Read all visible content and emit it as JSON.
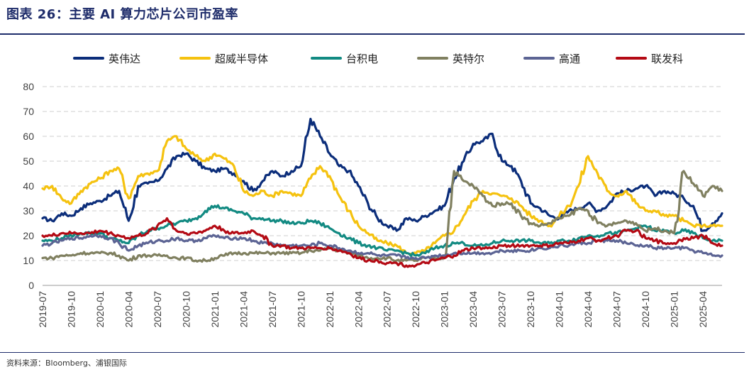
{
  "header": {
    "title": "图表 26：主要 AI 算力芯片公司市盈率"
  },
  "footer": {
    "source": "资料来源：Bloomberg、浦银国际"
  },
  "chart_data": {
    "type": "line",
    "title": "",
    "xlabel": "",
    "ylabel": "",
    "ylim": [
      0,
      80
    ],
    "yticks": [
      0,
      10,
      20,
      30,
      40,
      50,
      60,
      70,
      80
    ],
    "grid": "horizontal-dashed",
    "legend_position": "top",
    "x_tick_labels": [
      "2019-07",
      "2019-10",
      "2020-01",
      "2020-04",
      "2020-07",
      "2020-10",
      "2021-01",
      "2021-04",
      "2021-07",
      "2021-10",
      "2022-01",
      "2022-04",
      "2022-07",
      "2022-10",
      "2023-01",
      "2023-04",
      "2023-07",
      "2023-10",
      "2024-01",
      "2024-04",
      "2024-07",
      "2024-10",
      "2025-01",
      "2025-04"
    ],
    "x": [
      "2019-07",
      "2019-08",
      "2019-09",
      "2019-10",
      "2019-11",
      "2019-12",
      "2020-01",
      "2020-02",
      "2020-03",
      "2020-04",
      "2020-05",
      "2020-06",
      "2020-07",
      "2020-08",
      "2020-09",
      "2020-10",
      "2020-11",
      "2020-12",
      "2021-01",
      "2021-02",
      "2021-03",
      "2021-04",
      "2021-05",
      "2021-06",
      "2021-07",
      "2021-08",
      "2021-09",
      "2021-10",
      "2021-11",
      "2021-12",
      "2022-01",
      "2022-02",
      "2022-03",
      "2022-04",
      "2022-05",
      "2022-06",
      "2022-07",
      "2022-08",
      "2022-09",
      "2022-10",
      "2022-11",
      "2022-12",
      "2023-01",
      "2023-02",
      "2023-03",
      "2023-04",
      "2023-05",
      "2023-06",
      "2023-07",
      "2023-08",
      "2023-09",
      "2023-10",
      "2023-11",
      "2023-12",
      "2024-01",
      "2024-02",
      "2024-03",
      "2024-04",
      "2024-05",
      "2024-06",
      "2024-07",
      "2024-08",
      "2024-09",
      "2024-10",
      "2024-11",
      "2024-12",
      "2025-01",
      "2025-02",
      "2025-03",
      "2025-04",
      "2025-05",
      "2025-06"
    ],
    "series": [
      {
        "name": "英伟达",
        "color": "#0b2d7a",
        "values": [
          27,
          26,
          29,
          28,
          31,
          33,
          34,
          36,
          38,
          26,
          40,
          41,
          42,
          47,
          52,
          53,
          50,
          47,
          46,
          47,
          45,
          42,
          38,
          42,
          46,
          44,
          46,
          48,
          67,
          60,
          53,
          48,
          46,
          40,
          33,
          27,
          24,
          22,
          27,
          26,
          28,
          30,
          32,
          43,
          50,
          57,
          58,
          61,
          50,
          48,
          42,
          33,
          31,
          28,
          27,
          30,
          31,
          33,
          30,
          32,
          37,
          38,
          39,
          40,
          36,
          38,
          37,
          35,
          32,
          22,
          25,
          29
        ]
      },
      {
        "name": "超威半导体",
        "color": "#f5c20f",
        "values": [
          39,
          40,
          35,
          33,
          38,
          41,
          43,
          46,
          47,
          35,
          44,
          45,
          46,
          58,
          60,
          55,
          52,
          50,
          53,
          51,
          48,
          38,
          36,
          38,
          36,
          38,
          37,
          36,
          43,
          48,
          44,
          36,
          30,
          24,
          21,
          18,
          17,
          16,
          13,
          13,
          14,
          17,
          20,
          22,
          28,
          34,
          38,
          37,
          36,
          35,
          32,
          28,
          26,
          24,
          28,
          32,
          40,
          52,
          45,
          38,
          36,
          38,
          33,
          30,
          30,
          28,
          28,
          26,
          24,
          24,
          24,
          24
        ]
      },
      {
        "name": "台积电",
        "color": "#128a82",
        "values": [
          18,
          18,
          19,
          20,
          21,
          21,
          21,
          19,
          18,
          17,
          20,
          22,
          23,
          24,
          25,
          26,
          27,
          30,
          32,
          31,
          30,
          29,
          27,
          27,
          26,
          26,
          25,
          25,
          26,
          25,
          23,
          21,
          19,
          17,
          16,
          15,
          14,
          14,
          13,
          12,
          13,
          15,
          16,
          17,
          17,
          16,
          16,
          17,
          18,
          18,
          18,
          18,
          17,
          17,
          18,
          18,
          19,
          20,
          20,
          21,
          21,
          22,
          23,
          24,
          22,
          22,
          21,
          22,
          21,
          19,
          18,
          18
        ]
      },
      {
        "name": "英特尔",
        "color": "#808060",
        "values": [
          11,
          11,
          12,
          12,
          13,
          13,
          13,
          13,
          12,
          10,
          12,
          12,
          12,
          12,
          11,
          11,
          10,
          10,
          11,
          12,
          13,
          13,
          13,
          13,
          13,
          13,
          13,
          13,
          14,
          14,
          15,
          14,
          13,
          12,
          11,
          11,
          11,
          10,
          10,
          10,
          11,
          11,
          11,
          46,
          42,
          40,
          36,
          32,
          33,
          33,
          28,
          25,
          24,
          25,
          27,
          28,
          31,
          30,
          25,
          24,
          25,
          26,
          25,
          22,
          23,
          22,
          21,
          46,
          41,
          36,
          40,
          38
        ]
      },
      {
        "name": "高通",
        "color": "#5c6494",
        "values": [
          16,
          17,
          18,
          19,
          19,
          20,
          20,
          19,
          17,
          14,
          16,
          17,
          18,
          18,
          19,
          18,
          18,
          19,
          20,
          19,
          19,
          19,
          18,
          17,
          17,
          16,
          16,
          16,
          16,
          17,
          16,
          15,
          14,
          13,
          13,
          12,
          12,
          12,
          11,
          11,
          11,
          12,
          12,
          13,
          13,
          13,
          13,
          13,
          14,
          14,
          14,
          14,
          15,
          15,
          16,
          16,
          17,
          17,
          18,
          18,
          18,
          17,
          16,
          16,
          15,
          15,
          15,
          15,
          14,
          13,
          12,
          12
        ]
      },
      {
        "name": "联发科",
        "color": "#b40a14",
        "values": [
          20,
          20,
          21,
          21,
          21,
          21,
          22,
          21,
          20,
          19,
          20,
          21,
          24,
          27,
          22,
          21,
          21,
          22,
          24,
          22,
          21,
          21,
          22,
          20,
          16,
          16,
          15,
          15,
          15,
          15,
          15,
          14,
          13,
          11,
          10,
          10,
          9,
          9,
          8,
          8,
          9,
          10,
          11,
          12,
          14,
          15,
          15,
          15,
          16,
          16,
          16,
          16,
          16,
          16,
          17,
          17,
          18,
          19,
          18,
          19,
          20,
          22,
          22,
          19,
          18,
          17,
          17,
          19,
          19,
          20,
          17,
          16
        ]
      }
    ]
  }
}
